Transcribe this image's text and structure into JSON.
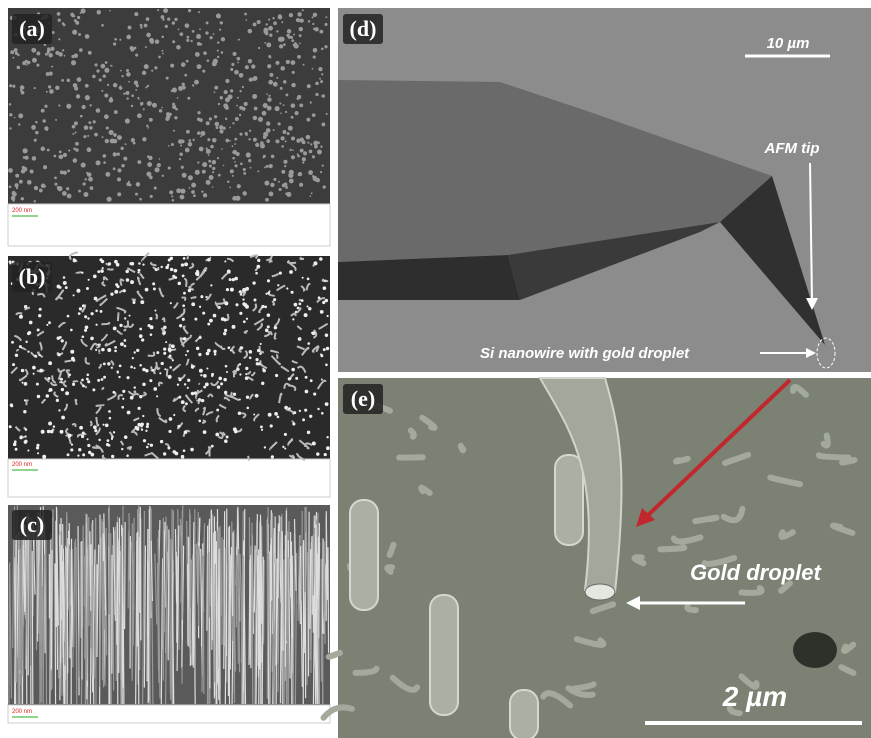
{
  "panels": [
    {
      "label": "(a)",
      "scale_bar": "200 nm"
    },
    {
      "label": "(b)",
      "scale_bar": "200 nm"
    },
    {
      "label": "(c)",
      "scale_bar": "200 nm"
    },
    {
      "label": "(d)",
      "scale_bar": "10 µm",
      "annotations": [
        "AFM tip",
        "Si nanowire with gold droplet"
      ]
    },
    {
      "label": "(e)",
      "scale_bar": "2 µm",
      "annotations": [
        "Gold  droplet"
      ]
    }
  ]
}
